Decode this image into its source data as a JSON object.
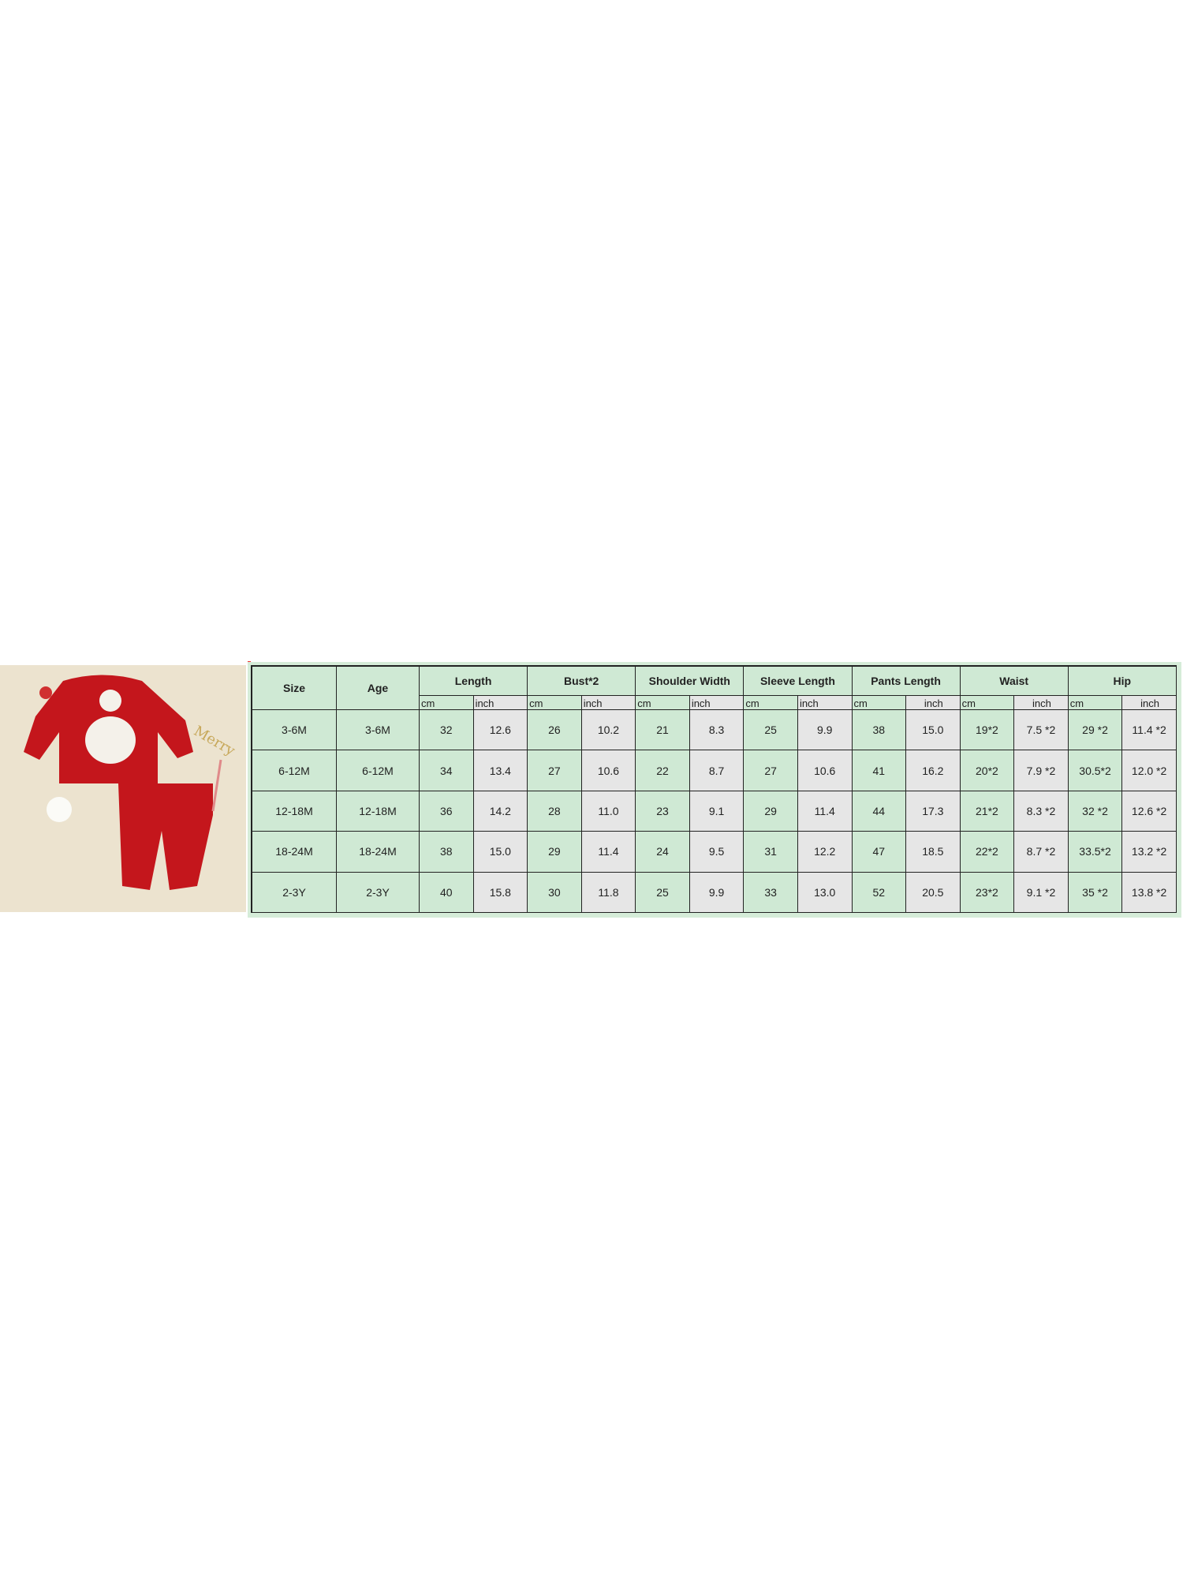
{
  "photo": {
    "alt_subject": "red Santa sweatshirt and pants set",
    "colors": {
      "background": "#ece3cf",
      "garment": "#c4161c"
    }
  },
  "table": {
    "headers": {
      "size": "Size",
      "age": "Age",
      "groups": [
        "Length",
        "Bust*2",
        "Shoulder Width",
        "Sleeve Length",
        "Pants Length",
        "Waist",
        "Hip"
      ]
    },
    "units": [
      "cm",
      "inch",
      "cm",
      "inch",
      "cm",
      "inch",
      "cm",
      "inch",
      "cm",
      "inch",
      "cm",
      "inch",
      "cm",
      "inch"
    ],
    "rows": [
      {
        "size": "3-6M",
        "age": "3-6M",
        "values": [
          "32",
          "12.6",
          "26",
          "10.2",
          "21",
          "8.3",
          "25",
          "9.9",
          "38",
          "15.0",
          "19*2",
          "7.5 *2",
          "29 *2",
          "11.4 *2"
        ]
      },
      {
        "size": "6-12M",
        "age": "6-12M",
        "values": [
          "34",
          "13.4",
          "27",
          "10.6",
          "22",
          "8.7",
          "27",
          "10.6",
          "41",
          "16.2",
          "20*2",
          "7.9 *2",
          "30.5*2",
          "12.0 *2"
        ]
      },
      {
        "size": "12-18M",
        "age": "12-18M",
        "values": [
          "36",
          "14.2",
          "28",
          "11.0",
          "23",
          "9.1",
          "29",
          "11.4",
          "44",
          "17.3",
          "21*2",
          "8.3 *2",
          "32 *2",
          "12.6 *2"
        ]
      },
      {
        "size": "18-24M",
        "age": "18-24M",
        "values": [
          "38",
          "15.0",
          "29",
          "11.4",
          "24",
          "9.5",
          "31",
          "12.2",
          "47",
          "18.5",
          "22*2",
          "8.7 *2",
          "33.5*2",
          "13.2 *2"
        ]
      },
      {
        "size": "2-3Y",
        "age": "2-3Y",
        "values": [
          "40",
          "15.8",
          "30",
          "11.8",
          "25",
          "9.9",
          "33",
          "13.0",
          "52",
          "20.5",
          "23*2",
          "9.1 *2",
          "35 *2",
          "13.8 *2"
        ]
      }
    ],
    "colors": {
      "cm_cell": "#cfe9d4",
      "inch_cell": "#e6e6e6",
      "border": "#222222"
    }
  }
}
